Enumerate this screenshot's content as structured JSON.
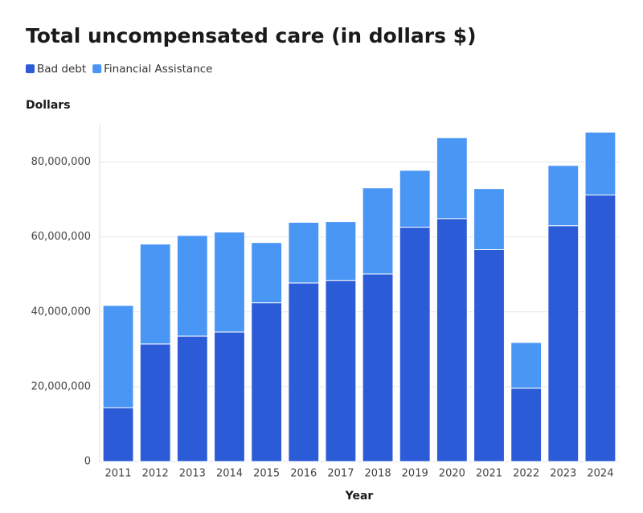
{
  "chart_data": {
    "type": "stacked_bar",
    "title": "Total uncompensated care (in dollars $)",
    "y_label": "Dollars",
    "x_label": "Year",
    "categories": [
      "2011",
      "2012",
      "2013",
      "2014",
      "2015",
      "2016",
      "2017",
      "2018",
      "2019",
      "2020",
      "2021",
      "2022",
      "2023",
      "2024"
    ],
    "series": [
      {
        "name": "Bad debt",
        "color": "#2b5bd7",
        "values": [
          14400000,
          31400000,
          33500000,
          34600000,
          42400000,
          47700000,
          48400000,
          50100000,
          62600000,
          64900000,
          56600000,
          19600000,
          63000000,
          71200000
        ]
      },
      {
        "name": "Financial Assistance",
        "color": "#4a96f5",
        "values": [
          27300000,
          26700000,
          26900000,
          26700000,
          16100000,
          16200000,
          15700000,
          23000000,
          15200000,
          21600000,
          16300000,
          12200000,
          16100000,
          16800000
        ]
      }
    ],
    "ylim": [
      0,
      90000000
    ],
    "yticks": [
      0,
      {
        "value": 20000000,
        "label": "20,000,000"
      },
      {
        "value": 40000000,
        "label": "40,000,000"
      },
      {
        "value": 60000000,
        "label": "60,000,000"
      },
      {
        "value": 80000000,
        "label": "80,000,000"
      }
    ],
    "grid": true
  }
}
